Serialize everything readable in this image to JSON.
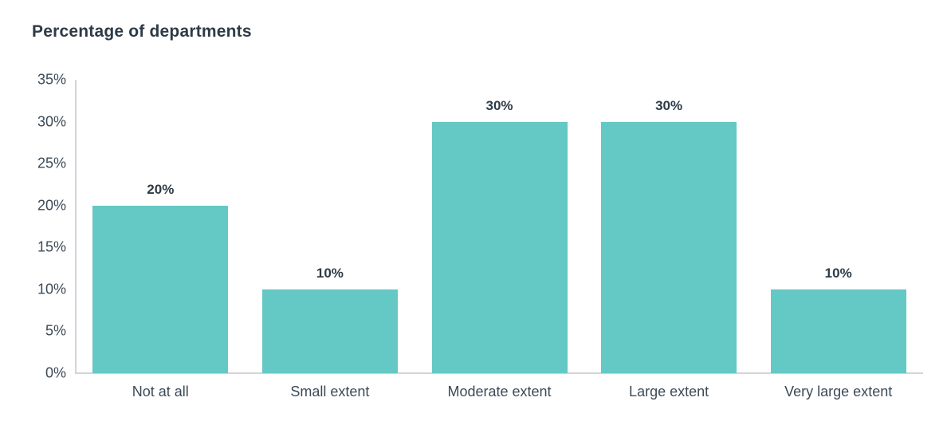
{
  "chart_data": {
    "type": "bar",
    "title": "Percentage of departments",
    "categories": [
      "Not at all",
      "Small extent",
      "Moderate extent",
      "Large extent",
      "Very large extent"
    ],
    "values": [
      20,
      10,
      30,
      30,
      10
    ],
    "value_labels": [
      "20%",
      "10%",
      "30%",
      "30%",
      "10%"
    ],
    "ytick_labels": [
      "0%",
      "5%",
      "10%",
      "15%",
      "20%",
      "25%",
      "30%",
      "35%"
    ],
    "ytick_values": [
      0,
      5,
      10,
      15,
      20,
      25,
      30,
      35
    ],
    "ylim": [
      0,
      35
    ],
    "xlabel": "",
    "ylabel": "",
    "grid": false,
    "legend": false,
    "colors": {
      "bar_fill": "#64C8C5",
      "title_text": "#2E3B47",
      "data_label_text": "#2E3B47",
      "axis_label_text": "#3C4A57",
      "axis_line": "#D4D4D8",
      "background": "#FFFFFF"
    }
  }
}
